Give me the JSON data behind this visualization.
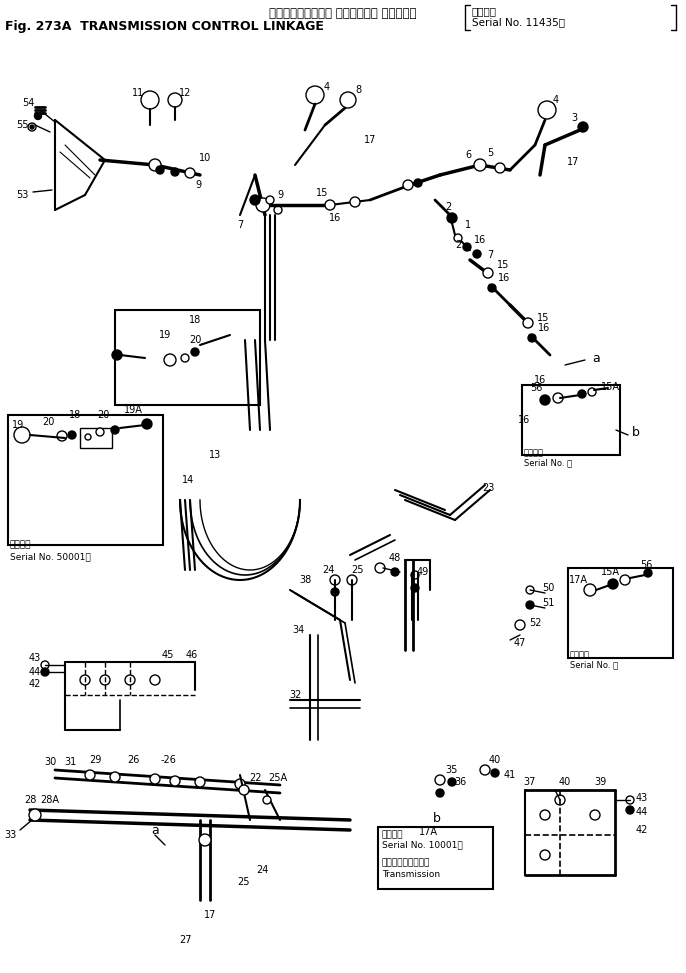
{
  "title_jp": "トランスミッション コントロール リンケージ",
  "title_serial_jp": "適用号機",
  "title_serial_en": "Serial No. 11435～",
  "title_en": "Fig. 273A  TRANSMISSION CONTROL LINKAGE",
  "bg_color": "#ffffff",
  "line_color": "#000000",
  "fig_width": 6.86,
  "fig_height": 9.73,
  "dpi": 100,
  "inset1_serial": "適用号機",
  "inset1_serial2": "Serial No. 50001～",
  "inset2_serial": "適用号機",
  "inset2_serial2": "Serial No. ～",
  "inset3_serial": "適用号機",
  "inset3_serial2": "Serial No. ～",
  "trans_serial": "適用号機",
  "trans_serial2": "Serial No. 10001～",
  "trans_label1": "トランスミッション",
  "trans_label2": "Transmission"
}
